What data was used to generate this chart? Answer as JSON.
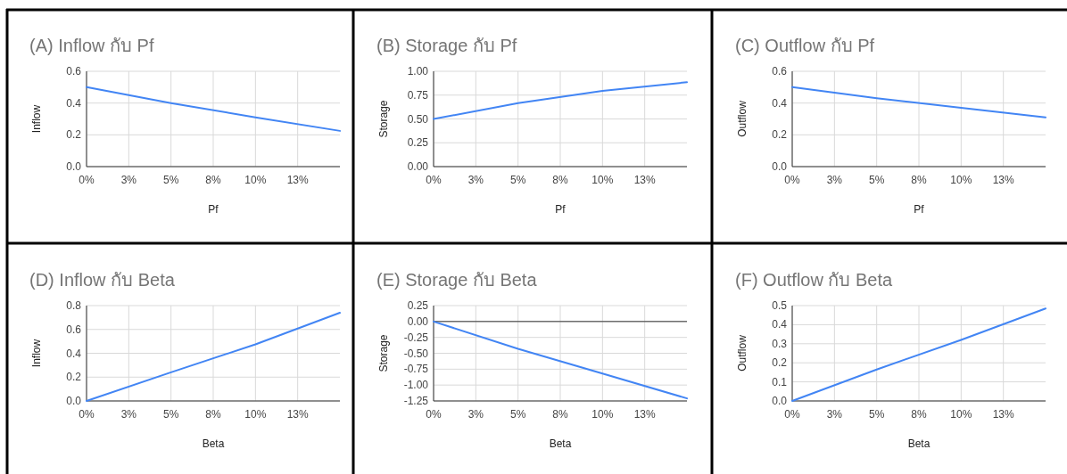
{
  "chart_data": [
    {
      "type": "line",
      "title": "(A) Inflow กับ Pf",
      "xlabel": "Pf",
      "ylabel": "Inflow",
      "x": [
        0,
        5,
        10,
        15
      ],
      "series": [
        {
          "color": "#4285f4",
          "values": [
            0.5,
            0.4,
            0.31,
            0.225
          ]
        }
      ],
      "xlim": [
        0,
        15
      ],
      "xticks": [
        {
          "value": 0,
          "label": "0%"
        },
        {
          "value": 2.5,
          "label": "3%"
        },
        {
          "value": 5,
          "label": "5%"
        },
        {
          "value": 7.5,
          "label": "8%"
        },
        {
          "value": 10,
          "label": "10%"
        },
        {
          "value": 12.5,
          "label": "13%"
        }
      ],
      "ylim": [
        0,
        0.6
      ],
      "yticks": [
        {
          "value": 0,
          "label": "0.0"
        },
        0.2,
        0.4,
        0.6
      ],
      "grid": true
    },
    {
      "type": "line",
      "title": "(B) Storage กับ Pf",
      "xlabel": "Pf",
      "ylabel": "Storage",
      "x": [
        0,
        5,
        10,
        15
      ],
      "series": [
        {
          "color": "#4285f4",
          "values": [
            0.5,
            0.665,
            0.795,
            0.885
          ]
        }
      ],
      "xlim": [
        0,
        15
      ],
      "xticks": [
        {
          "value": 0,
          "label": "0%"
        },
        {
          "value": 2.5,
          "label": "3%"
        },
        {
          "value": 5,
          "label": "5%"
        },
        {
          "value": 7.5,
          "label": "8%"
        },
        {
          "value": 10,
          "label": "10%"
        },
        {
          "value": 12.5,
          "label": "13%"
        }
      ],
      "ylim": [
        0,
        1
      ],
      "yticks": [
        {
          "value": 0,
          "label": "0.00"
        },
        0.25,
        {
          "value": 0.5,
          "label": "0.50"
        },
        0.75,
        {
          "value": 1,
          "label": "1.00"
        }
      ],
      "grid": true
    },
    {
      "type": "line",
      "title": "(C) Outflow กับ Pf",
      "xlabel": "Pf",
      "ylabel": "Outflow",
      "x": [
        0,
        5,
        10,
        15
      ],
      "series": [
        {
          "color": "#4285f4",
          "values": [
            0.5,
            0.43,
            0.37,
            0.31
          ]
        }
      ],
      "xlim": [
        0,
        15
      ],
      "xticks": [
        {
          "value": 0,
          "label": "0%"
        },
        {
          "value": 2.5,
          "label": "3%"
        },
        {
          "value": 5,
          "label": "5%"
        },
        {
          "value": 7.5,
          "label": "8%"
        },
        {
          "value": 10,
          "label": "10%"
        },
        {
          "value": 12.5,
          "label": "13%"
        }
      ],
      "ylim": [
        0,
        0.6
      ],
      "yticks": [
        {
          "value": 0,
          "label": "0.0"
        },
        0.2,
        0.4,
        0.6
      ],
      "grid": true
    },
    {
      "type": "line",
      "title": "(D) Inflow กับ Beta",
      "xlabel": "Beta",
      "ylabel": "Inflow",
      "x": [
        0,
        5,
        10,
        15
      ],
      "series": [
        {
          "color": "#4285f4",
          "values": [
            0,
            0.24,
            0.475,
            0.74
          ]
        }
      ],
      "xlim": [
        0,
        15
      ],
      "xticks": [
        {
          "value": 0,
          "label": "0%"
        },
        {
          "value": 2.5,
          "label": "3%"
        },
        {
          "value": 5,
          "label": "5%"
        },
        {
          "value": 7.5,
          "label": "8%"
        },
        {
          "value": 10,
          "label": "10%"
        },
        {
          "value": 12.5,
          "label": "13%"
        }
      ],
      "ylim": [
        0,
        0.8
      ],
      "yticks": [
        {
          "value": 0,
          "label": "0.0"
        },
        0.2,
        0.4,
        0.6,
        0.8
      ],
      "grid": true
    },
    {
      "type": "line",
      "title": "(E) Storage กับ Beta",
      "xlabel": "Beta",
      "ylabel": "Storage",
      "x": [
        0,
        5,
        10,
        15
      ],
      "series": [
        {
          "color": "#4285f4",
          "values": [
            0,
            -0.43,
            -0.82,
            -1.21
          ]
        }
      ],
      "xlim": [
        0,
        15
      ],
      "xticks": [
        {
          "value": 0,
          "label": "0%"
        },
        {
          "value": 2.5,
          "label": "3%"
        },
        {
          "value": 5,
          "label": "5%"
        },
        {
          "value": 7.5,
          "label": "8%"
        },
        {
          "value": 10,
          "label": "10%"
        },
        {
          "value": 12.5,
          "label": "13%"
        }
      ],
      "ylim": [
        -1.25,
        0.25
      ],
      "yticks": [
        {
          "value": -1.25,
          "label": "-1.25"
        },
        {
          "value": -1,
          "label": "-1.00"
        },
        {
          "value": -0.75,
          "label": "-0.75"
        },
        {
          "value": -0.5,
          "label": "-0.50"
        },
        {
          "value": -0.25,
          "label": "-0.25"
        },
        {
          "value": 0,
          "label": "0.00"
        },
        0.25
      ],
      "ref_lines": [
        {
          "axis": "y",
          "value": 0,
          "color": "#333333"
        }
      ],
      "grid": true
    },
    {
      "type": "line",
      "title": "(F) Outflow กับ Beta",
      "xlabel": "Beta",
      "ylabel": "Outflow",
      "x": [
        0,
        5,
        10,
        15
      ],
      "series": [
        {
          "color": "#4285f4",
          "values": [
            0,
            0.165,
            0.32,
            0.485
          ]
        }
      ],
      "xlim": [
        0,
        15
      ],
      "xticks": [
        {
          "value": 0,
          "label": "0%"
        },
        {
          "value": 2.5,
          "label": "3%"
        },
        {
          "value": 5,
          "label": "5%"
        },
        {
          "value": 7.5,
          "label": "8%"
        },
        {
          "value": 10,
          "label": "10%"
        },
        {
          "value": 12.5,
          "label": "13%"
        }
      ],
      "ylim": [
        0,
        0.5
      ],
      "yticks": [
        {
          "value": 0,
          "label": "0.0"
        },
        0.1,
        0.2,
        0.3,
        0.4,
        0.5
      ],
      "grid": true
    }
  ]
}
